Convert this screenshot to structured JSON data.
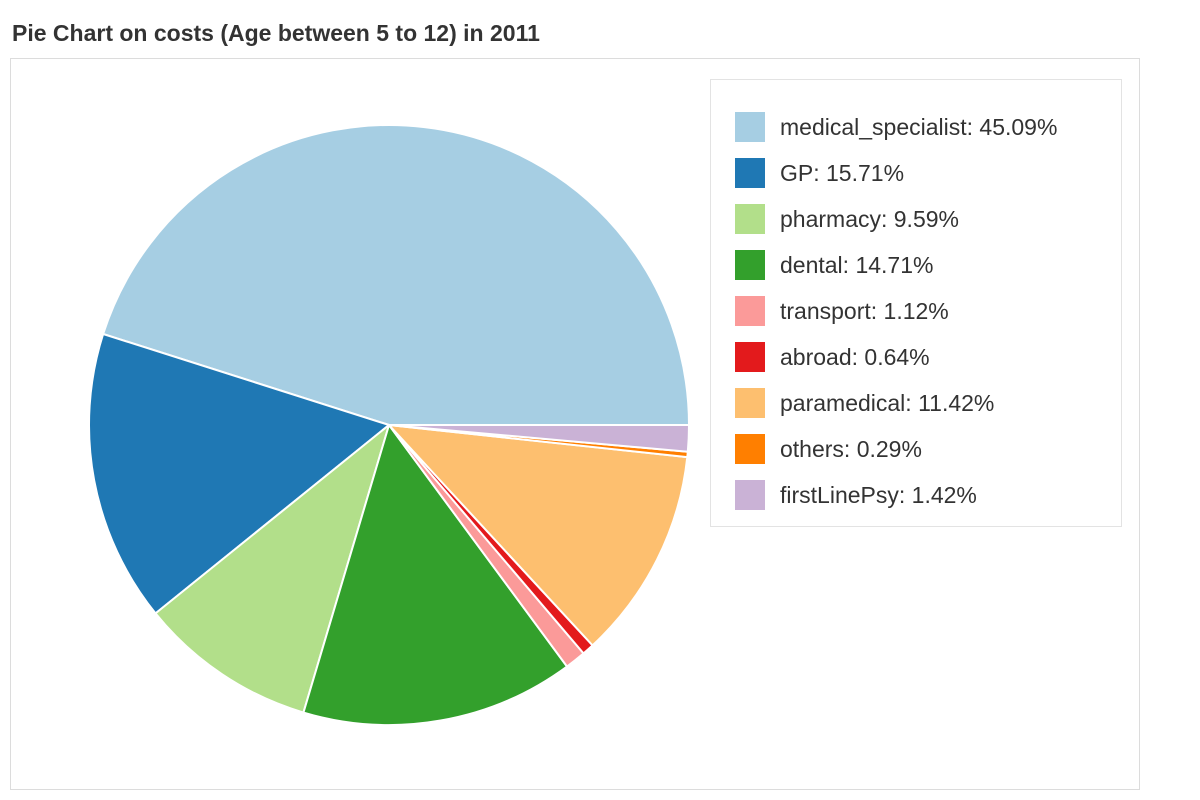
{
  "title": "Pie Chart on costs (Age between 5 to 12) in 2011",
  "chart_data": {
    "type": "pie",
    "title": "Pie Chart on costs (Age between 5 to 12) in 2011",
    "legend_position": "right",
    "slices": [
      {
        "label": "medical_specialist",
        "value": 45.09,
        "display": "medical_specialist: 45.09%",
        "color": "#a6cee3"
      },
      {
        "label": "GP",
        "value": 15.71,
        "display": "GP: 15.71%",
        "color": "#1f78b4"
      },
      {
        "label": "pharmacy",
        "value": 9.59,
        "display": "pharmacy: 9.59%",
        "color": "#b2df8a"
      },
      {
        "label": "dental",
        "value": 14.71,
        "display": "dental: 14.71%",
        "color": "#33a02c"
      },
      {
        "label": "transport",
        "value": 1.12,
        "display": "transport: 1.12%",
        "color": "#fb9a99"
      },
      {
        "label": "abroad",
        "value": 0.64,
        "display": "abroad: 0.64%",
        "color": "#e31a1c"
      },
      {
        "label": "paramedical",
        "value": 11.42,
        "display": "paramedical: 11.42%",
        "color": "#fdbf6f"
      },
      {
        "label": "others",
        "value": 0.29,
        "display": "others: 0.29%",
        "color": "#ff7f00"
      },
      {
        "label": "firstLinePsy",
        "value": 1.42,
        "display": "firstLinePsy: 1.42%",
        "color": "#cab2d6"
      }
    ]
  }
}
